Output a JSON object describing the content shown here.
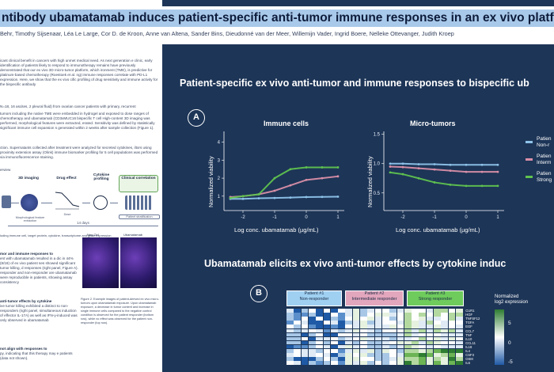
{
  "title": "ntibody ubamatamab induces patient-specific anti-tumor immune responses in an ex vivo platform for ova",
  "authors": "Behr, Timothy Sijsenaar, Léa Le Large, Cor D. de Kroon, Anne van Altena, Sander Bins, Dieudonné van der Meer, Willemijn Vader, Ingrid Boere, Nelleke Ottevanger, Judith Kroep",
  "left_column": {
    "intro": "icant clinical benefit in cancers with high unmet medical need. As next generation e clinic, early identification of patients likely to respond to immunotherapy remains have previously demonstrated that our ex vivo 3D micro-tumor platform, which ironment (TME), is predictive for platinum-based chemotherapy (Roestoek et al. ng) immune responses correlate with PD-L1 expression. Here, we show that the ex vivo cific profiling of drug sensitivity and immune activity for the bispecific antibody",
    "methods_cohort": "N=18, 16 ascites, 2 pleural fluid) from ovarian cancer patients with primary, recurrent",
    "methods_text": "tumors including the native TME were embedded in hydrogel and exposed to dose ranges of chemotherapy and ubamatamab (CD3xMUC16 bispecific T cell High-content 3D imaging was performed, morphological features were extracted, erated. Sensitivity was defined by statistically significant immune cell expansion s generated within 2 weeks after sample collection (Figure 1).",
    "cytokine_text": "ction. Supernatants collected after treatment were analyzed for secreted cytokines, iltors using proximity extension assay (Olink) immune biomarker profiling for 5 cell populations was performed via immunofluorescence staining.",
    "overview_label": "erview",
    "workflow": {
      "step1": "3D imaging",
      "step1_sub": "Morphological feature extraction",
      "step2": "Drug effect",
      "step2_sub": "Dose",
      "step3": "Cytokine profiling",
      "step4": "Clinical correlation",
      "step4_sub": "Patient stratification",
      "duration": "14 days",
      "footnote": "luding immune cell, target protein, cytokine, transcriptome and gene expression"
    },
    "results1_title": "mor and immune responses to",
    "results1_text": "ent with ubamatamab resulted in a dic in 44% (8/18) of ex vivo patient ses showed significant tumor killing, d responses (right panel, Figure A). responder and non-responder are ubamatamab were reproducible in patients, showing assay consistency",
    "results2_title": "anti-tumor effects by cytokine",
    "results2_text": "ive tumor killing exhibited a distinct to non-responders (right panel, simultaneous induction of effector IL-17A) as well as IFN-γ-induced was only observed in ubamatamab",
    "results3_title": "not align with responses to",
    "results3_text": "py, indicating that this therapy may e patients (data not shown).",
    "micro_labels": {
      "neg": "Neg Ctrl",
      "treat": "Ubamatamab"
    },
    "figure2_caption": "Figure 2. Example images of patient-derived ex vivo micro-tumors upon ubamatamab exposure. Upon ubamatamab exposure, a decrease in tumor content and increase in single immune cells compared to the negative control condition is observed for the patient responder (bottom row), while no effect was observed for the patient non-responder (top row)."
  },
  "panel_a": {
    "heading": "Patient-specific ex vivo anti-tumor and immune responses to bispecific ub",
    "label": "A",
    "ylabel": "Normalized viability",
    "xlabel": "Log conc. ubamatamab (µg/mL)",
    "legend": [
      {
        "label": "Patien",
        "label2": "Non-r",
        "color": "#8ec3ea"
      },
      {
        "label": "Patien",
        "label2": "Interm",
        "color": "#d98fa8"
      },
      {
        "label": "Patien",
        "label2": "Strong",
        "color": "#5fc24f"
      }
    ]
  },
  "chart_data": [
    {
      "type": "line",
      "title": "Immune cells",
      "xlabel": "Log conc. ubamatamab (µg/mL)",
      "ylabel": "Normalized viability",
      "xlim": [
        -2.6,
        1.2
      ],
      "ylim": [
        0.2,
        4.6
      ],
      "xticks": [
        -2,
        -1,
        0,
        1
      ],
      "yticks": [
        1,
        2,
        3,
        4
      ],
      "x": [
        -2.4,
        -2,
        -1.5,
        -1,
        -0.5,
        0,
        0.5,
        1
      ],
      "series": [
        {
          "values": [
            0.85,
            0.85,
            0.88,
            0.9,
            0.92,
            0.95,
            0.96,
            0.97
          ],
          "color": "#8ec3ea"
        },
        {
          "values": [
            0.95,
            1.0,
            1.1,
            1.3,
            1.6,
            1.9,
            2.0,
            2.1
          ],
          "color": "#d98fa8"
        },
        {
          "values": [
            0.9,
            1.0,
            1.1,
            2.0,
            2.5,
            2.6,
            2.6,
            2.6
          ],
          "color": "#5fc24f"
        }
      ]
    },
    {
      "type": "line",
      "title": "Micro-tumors",
      "xlabel": "Log conc. ubamatamab (µg/mL)",
      "ylabel": "Normalized viability",
      "xlim": [
        -2.6,
        1.2
      ],
      "ylim": [
        0.2,
        1.55
      ],
      "xticks": [
        -2,
        -1,
        0,
        1
      ],
      "yticks": [
        0.5,
        1.0,
        1.5
      ],
      "x": [
        -2.4,
        -2,
        -1.5,
        -1,
        -0.5,
        0,
        0.5,
        1
      ],
      "series": [
        {
          "values": [
            1.0,
            1.0,
            0.99,
            0.99,
            0.98,
            0.98,
            0.98,
            0.98
          ],
          "color": "#8ec3ea"
        },
        {
          "values": [
            0.95,
            0.94,
            0.92,
            0.9,
            0.88,
            0.86,
            0.86,
            0.86
          ],
          "color": "#d98fa8"
        },
        {
          "values": [
            0.85,
            0.82,
            0.75,
            0.68,
            0.64,
            0.62,
            0.62,
            0.62
          ],
          "color": "#5fc24f"
        }
      ]
    }
  ],
  "panel_b": {
    "heading": "Ubamatamab elicits ex vivo anti-tumor effects by cytokine induc",
    "label": "B",
    "patients": [
      {
        "name": "Patient #1",
        "status": "Non-responder",
        "color": "#9fd0f2"
      },
      {
        "name": "Patient #2",
        "status": "Intermediate responder",
        "color": "#e2a6bd"
      },
      {
        "name": "Patient #3",
        "status": "Strong responder",
        "color": "#6ecb5c"
      }
    ],
    "genes": [
      "CUR1",
      "HGF",
      "TNFSF12",
      "TGFA",
      "EGF",
      "CCL7",
      "TNF",
      "IL10",
      "CCL11",
      "IL18",
      "IL4",
      "CSF3",
      "OSM",
      "IL6"
    ],
    "colorbar_title": "Normalized\nlog2 expression",
    "colorbar_ticks": [
      "5",
      "0",
      "-5"
    ],
    "colorbar_colors": [
      "#2e7d32",
      "#ffffff",
      "#1f5aa6"
    ]
  }
}
